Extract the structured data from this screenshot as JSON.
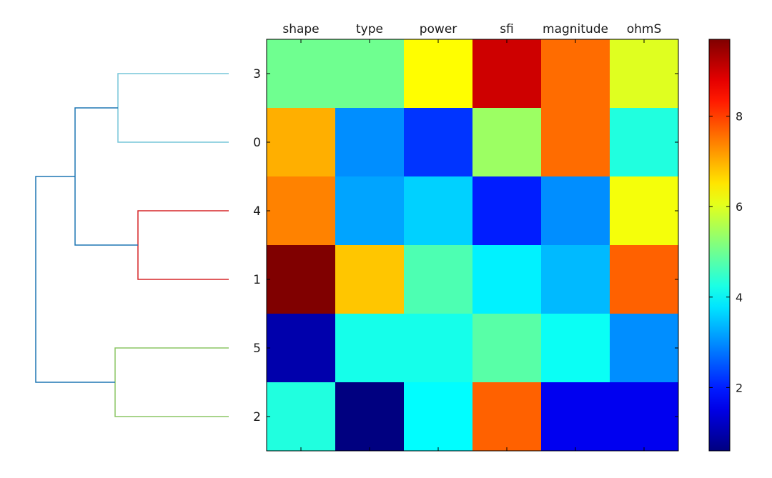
{
  "chart_data": {
    "type": "heatmap",
    "columns": [
      "shape",
      "type",
      "power",
      "sfi",
      "magnitude",
      "ohmS"
    ],
    "rows": [
      "3",
      "0",
      "4",
      "1",
      "5",
      "2"
    ],
    "values": [
      [
        5.0,
        5.0,
        6.3,
        9.0,
        7.6,
        6.0
      ],
      [
        7.0,
        3.0,
        2.2,
        5.4,
        7.6,
        4.3
      ],
      [
        7.4,
        3.2,
        3.6,
        2.0,
        3.0,
        6.2
      ],
      [
        9.7,
        6.8,
        4.7,
        3.9,
        3.4,
        7.7
      ],
      [
        1.0,
        4.2,
        4.2,
        4.8,
        4.1,
        3.0
      ],
      [
        4.3,
        0.6,
        4.0,
        7.7,
        1.6,
        1.6
      ]
    ],
    "colorbar": {
      "min": 0.6,
      "max": 9.7,
      "ticks": [
        2,
        4,
        6,
        8
      ],
      "colormap": "jet"
    },
    "dendrogram": {
      "clusters": [
        {
          "leaves": [
            "3",
            "0"
          ],
          "color": "#76c5d8"
        },
        {
          "leaves": [
            "4",
            "1"
          ],
          "color": "#d62728"
        },
        {
          "leaves": [
            "5",
            "2"
          ],
          "color": "#8cc665"
        }
      ],
      "link_color": "#1f77b4"
    }
  }
}
